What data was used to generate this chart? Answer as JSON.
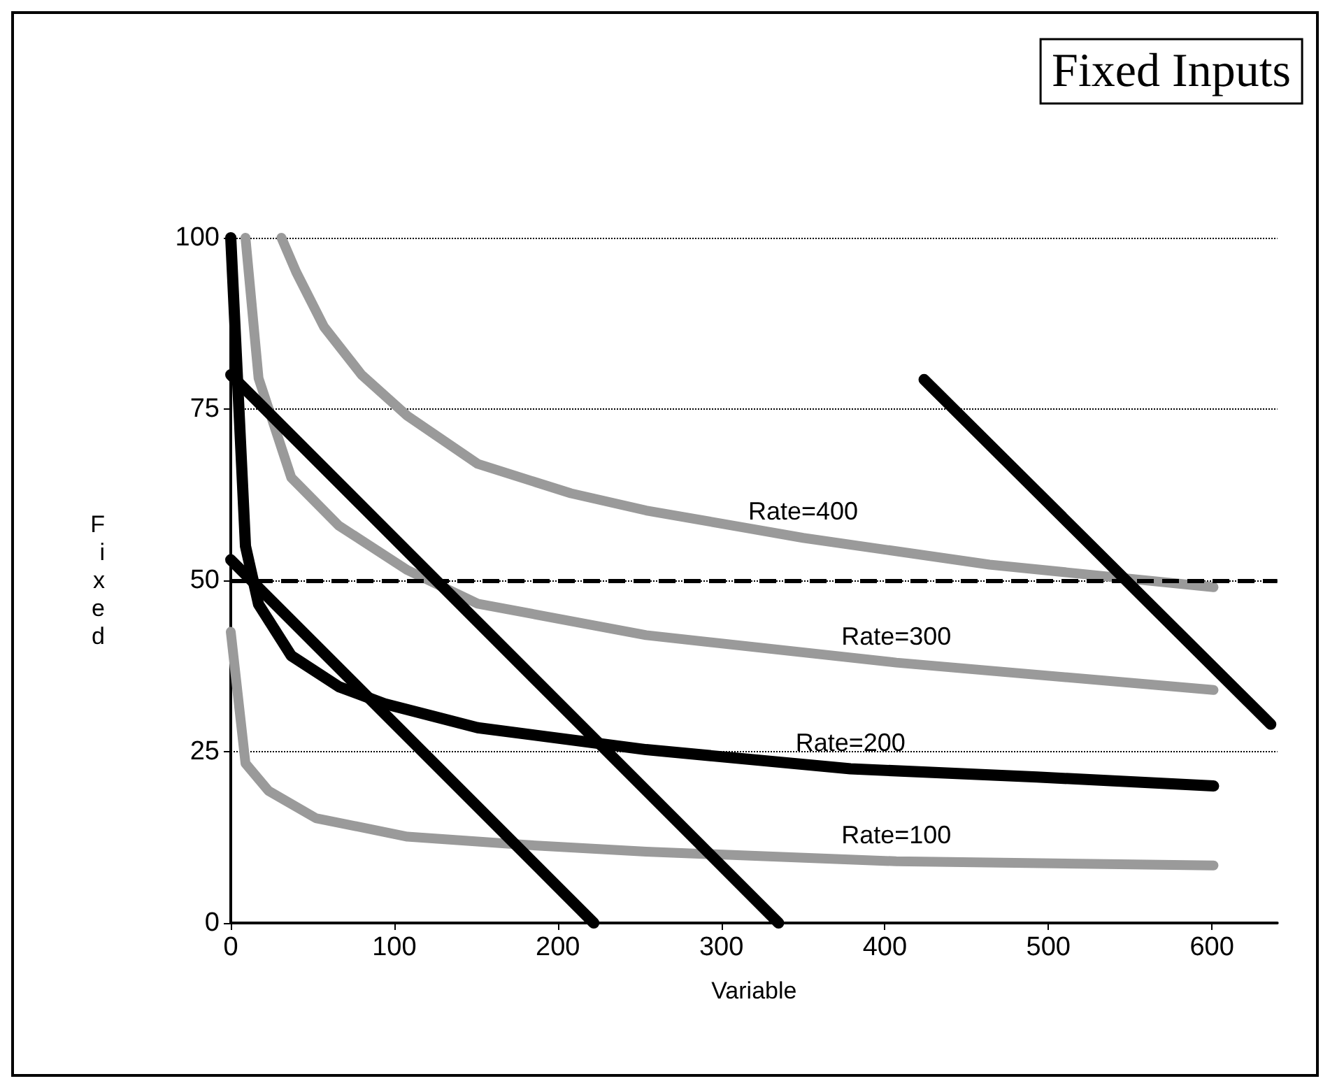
{
  "chart_data": {
    "type": "line",
    "title": "Fixed Inputs",
    "xlabel": "Variable",
    "ylabel": "Fixed",
    "xlim": [
      0,
      640
    ],
    "xticks": [
      0,
      100,
      200,
      300,
      400,
      500,
      600
    ],
    "ylim": [
      0,
      100
    ],
    "yticks": [
      0,
      25,
      50,
      75,
      100
    ],
    "grid": "y",
    "legend": false,
    "marker": "none",
    "line_style": "solid",
    "ref_lines": [
      {
        "axis": "y",
        "value": 50,
        "line_style": "dashed",
        "color": "#000000"
      }
    ],
    "series": [
      {
        "name": "Rate=400",
        "color": "#9a9a9a",
        "x": [
          31,
          40,
          57,
          80,
          108,
          151,
          208,
          254,
          350,
          464,
          601
        ],
        "values": [
          100,
          95,
          87,
          80,
          74,
          67,
          62.7,
          60.2,
          56.2,
          52.3,
          49
        ]
      },
      {
        "name": "Rate=300",
        "color": "#9a9a9a",
        "x": [
          9,
          17,
          37,
          66,
          108,
          151,
          254,
          407,
          601
        ],
        "values": [
          100,
          79.5,
          65,
          58,
          51.5,
          46.6,
          42,
          38,
          34
        ]
      },
      {
        "name": "Rate=200",
        "color": "#000000",
        "x": [
          0,
          9,
          17,
          37,
          66,
          94,
          151,
          254,
          379,
          493,
          601
        ],
        "values": [
          100,
          55,
          46.5,
          39,
          34.5,
          32,
          28.5,
          25.3,
          22.5,
          21.3,
          20
        ]
      },
      {
        "name": "Rate=100",
        "color": "#9a9a9a",
        "x": [
          0,
          9,
          23,
          52,
          108,
          180,
          254,
          407,
          601
        ],
        "values": [
          42.5,
          23.3,
          19.3,
          15.3,
          12.6,
          11.4,
          10.4,
          9,
          8.4
        ]
      },
      {
        "color": "#000000",
        "x": [
          0,
          222
        ],
        "values": [
          53,
          0
        ]
      },
      {
        "color": "#000000",
        "x": [
          0,
          335
        ],
        "values": [
          80,
          0
        ]
      },
      {
        "color": "#000000",
        "x": [
          424,
          636
        ],
        "values": [
          79.3,
          29
        ]
      }
    ]
  }
}
